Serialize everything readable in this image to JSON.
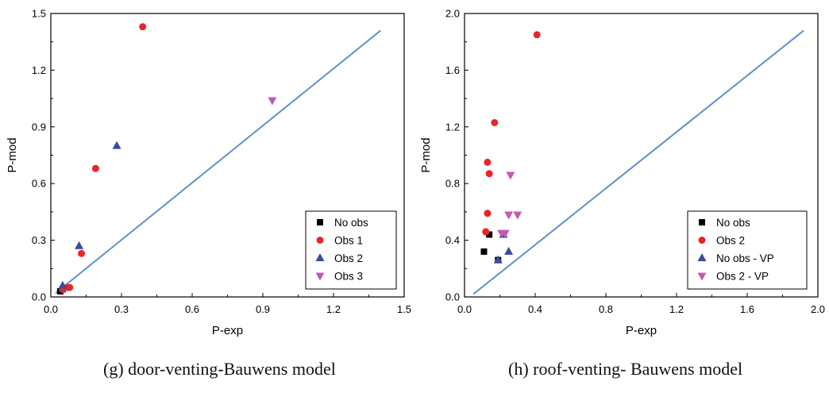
{
  "captions": [
    "(g) door-venting-Bauwens model",
    "(h) roof-venting- Bauwens model"
  ],
  "colors": {
    "diagonal": "#5b93c7",
    "no_obs": "#000000",
    "obs1": "#e8262a",
    "obs2": "#3a4c9a",
    "obs3": "#c05bb4"
  },
  "chart_data": [
    {
      "type": "scatter",
      "xlabel": "P-exp",
      "ylabel": "P-mod",
      "xlim": [
        0,
        1.5
      ],
      "ylim": [
        0,
        1.5
      ],
      "xticks": [
        "0.0",
        "0.3",
        "0.6",
        "0.9",
        "1.2",
        "1.5"
      ],
      "yticks": [
        "0.0",
        "0.3",
        "0.6",
        "0.9",
        "1.2",
        "1.5"
      ],
      "grid": false,
      "legend_position": "bottom-right",
      "reference_line": {
        "x": [
          0.02,
          1.4
        ],
        "y": [
          0.02,
          1.41
        ]
      },
      "series": [
        {
          "name": "No obs",
          "marker": "square",
          "color": "#000000",
          "x": [
            0.04,
            0.05
          ],
          "y": [
            0.03,
            0.04
          ]
        },
        {
          "name": "Obs 1",
          "marker": "circle",
          "color": "#e8262a",
          "x": [
            0.39,
            0.19,
            0.13,
            0.07,
            0.08,
            0.05
          ],
          "y": [
            1.43,
            0.68,
            0.23,
            0.05,
            0.05,
            0.04
          ]
        },
        {
          "name": "Obs 2",
          "marker": "triangle-up",
          "color": "#3a4c9a",
          "x": [
            0.28,
            0.12,
            0.05
          ],
          "y": [
            0.8,
            0.27,
            0.06
          ]
        },
        {
          "name": "Obs 3",
          "marker": "triangle-down",
          "color": "#c05bb4",
          "x": [
            0.94
          ],
          "y": [
            1.04
          ]
        }
      ]
    },
    {
      "type": "scatter",
      "xlabel": "P-exp",
      "ylabel": "P-mod",
      "xlim": [
        0,
        2.0
      ],
      "ylim": [
        0,
        2.0
      ],
      "xticks": [
        "0.0",
        "0.4",
        "0.8",
        "1.2",
        "1.6",
        "2.0"
      ],
      "yticks": [
        "0.0",
        "0.4",
        "0.8",
        "1.2",
        "1.6",
        "2.0"
      ],
      "grid": false,
      "legend_position": "bottom-right",
      "reference_line": {
        "x": [
          0.05,
          1.92
        ],
        "y": [
          0.02,
          1.88
        ]
      },
      "series": [
        {
          "name": "No obs",
          "marker": "square",
          "color": "#000000",
          "x": [
            0.11,
            0.14,
            0.19
          ],
          "y": [
            0.32,
            0.44,
            0.26
          ]
        },
        {
          "name": "Obs 2",
          "marker": "circle",
          "color": "#e8262a",
          "x": [
            0.41,
            0.17,
            0.13,
            0.14,
            0.13,
            0.12
          ],
          "y": [
            1.85,
            1.23,
            0.95,
            0.87,
            0.59,
            0.46
          ]
        },
        {
          "name": "No obs - VP",
          "marker": "triangle-up",
          "color": "#3a4c9a",
          "x": [
            0.19,
            0.22,
            0.25
          ],
          "y": [
            0.26,
            0.44,
            0.32
          ]
        },
        {
          "name": "Obs 2 - VP",
          "marker": "triangle-down",
          "color": "#c05bb4",
          "x": [
            0.26,
            0.25,
            0.3,
            0.21,
            0.23
          ],
          "y": [
            0.86,
            0.58,
            0.58,
            0.45,
            0.45
          ]
        }
      ]
    }
  ]
}
